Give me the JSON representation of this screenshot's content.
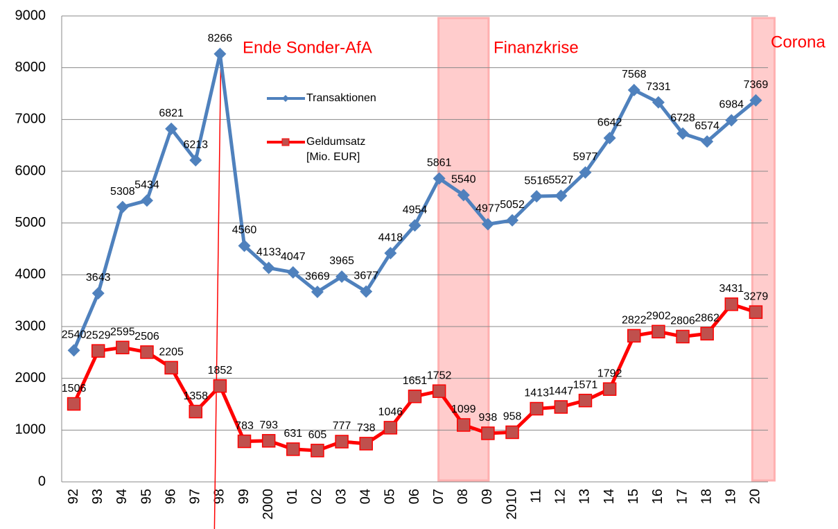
{
  "chart_data": {
    "type": "line",
    "categories": [
      "92",
      "93",
      "94",
      "95",
      "96",
      "97",
      "98",
      "99",
      "2000",
      "01",
      "02",
      "03",
      "04",
      "05",
      "06",
      "07",
      "08",
      "09",
      "2010",
      "11",
      "12",
      "13",
      "14",
      "15",
      "16",
      "17",
      "18",
      "19",
      "20"
    ],
    "series": [
      {
        "name": "Transaktionen",
        "color": "#4f81bd",
        "marker": "diamond",
        "values": [
          2540,
          3643,
          5308,
          5434,
          6821,
          6213,
          8266,
          4560,
          4133,
          4047,
          3669,
          3965,
          3677,
          4418,
          4954,
          5861,
          5540,
          4977,
          5052,
          5516,
          5527,
          5977,
          6642,
          7568,
          7331,
          6728,
          6574,
          6984,
          7369
        ]
      },
      {
        "name": "Geldumsatz [Mio. EUR]",
        "color": "#ff0000",
        "marker_color": "#c0504d",
        "marker": "square",
        "values": [
          1506,
          2529,
          2595,
          2506,
          2205,
          1358,
          1852,
          783,
          793,
          631,
          605,
          777,
          738,
          1046,
          1651,
          1752,
          1099,
          938,
          958,
          1413,
          1447,
          1571,
          1792,
          2822,
          2902,
          2806,
          2862,
          3431,
          3279
        ]
      }
    ],
    "ylim": [
      0,
      9000
    ],
    "yticks": [
      0,
      1000,
      2000,
      3000,
      4000,
      5000,
      6000,
      7000,
      8000,
      9000
    ],
    "grid": true,
    "annotations": [
      {
        "text": "Ende Sonder-AfA"
      },
      {
        "text": "Finanzkrise"
      },
      {
        "text": "Corona"
      }
    ]
  }
}
